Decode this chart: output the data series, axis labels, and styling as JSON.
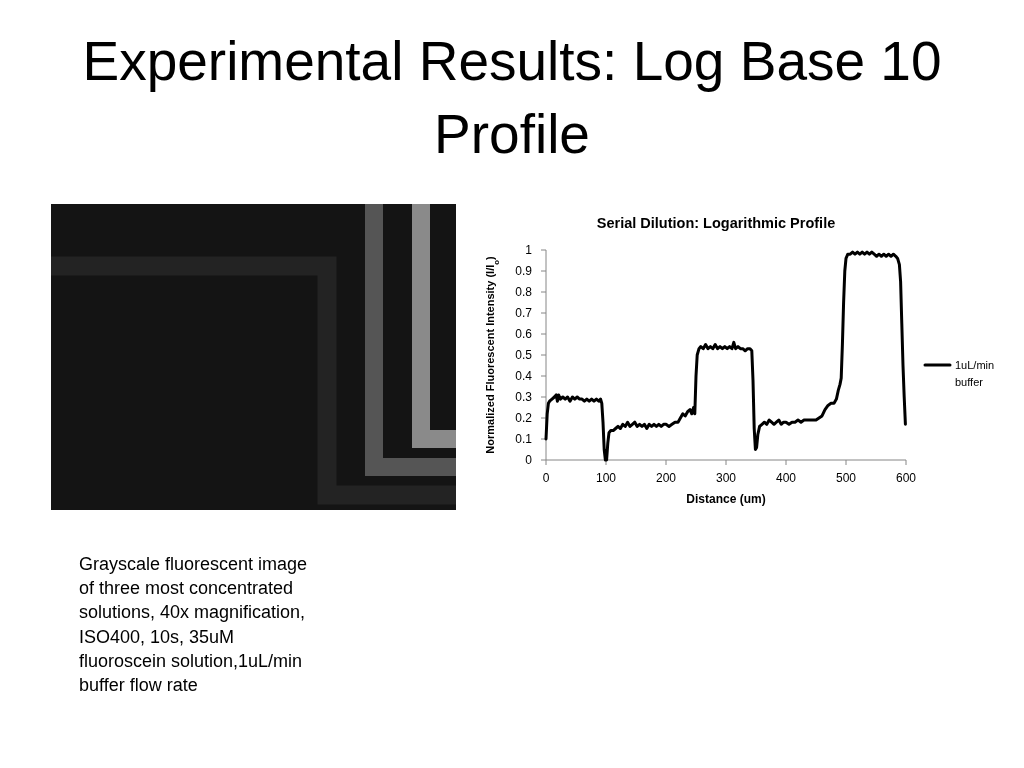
{
  "chart_data": {
    "type": "line",
    "title": "Experimental Results: Log Base 10 Profile",
    "subtitle": "Serial Dilution: Logarithmic Profile",
    "xlabel": "Distance (um)",
    "ylabel": "Normalized Fluorescent Intensity (I/I$_{o}$)",
    "xlim": [
      0,
      600
    ],
    "xticks": [
      0,
      100,
      200,
      300,
      400,
      500,
      600
    ],
    "ylim": [
      0,
      1
    ],
    "yticks": [
      0,
      0.1,
      0.2,
      0.3,
      0.4,
      0.5,
      0.6,
      0.7,
      0.8,
      0.9,
      1
    ],
    "legend": "right",
    "annotations": [
      "Grayscale fluorescent image\nof three most concentrated\nsolutions, 40x magnification,\nISO400, 10s, 35uM\nfluoroscein solution,1uL/min\nbuffer flow rate"
    ],
    "series": [
      {
        "name": "1uL/min buffer",
        "color": "#000000",
        "x": [
          0,
          2,
          4,
          6,
          10,
          14,
          17,
          19,
          21,
          24,
          28,
          32,
          36,
          40,
          44,
          48,
          52,
          56,
          60,
          64,
          68,
          72,
          76,
          80,
          84,
          88,
          91,
          93,
          95,
          97,
          99,
          101,
          103,
          105,
          108,
          112,
          116,
          120,
          124,
          128,
          132,
          136,
          140,
          144,
          148,
          152,
          156,
          160,
          164,
          168,
          172,
          176,
          180,
          184,
          188,
          192,
          196,
          200,
          205,
          210,
          215,
          220,
          224,
          228,
          232,
          236,
          240,
          243,
          246,
          248,
          250,
          252,
          255,
          258,
          262,
          266,
          270,
          274,
          278,
          282,
          286,
          290,
          294,
          298,
          302,
          306,
          310,
          313,
          316,
          320,
          324,
          328,
          332,
          336,
          340,
          343,
          345,
          347,
          349,
          351,
          353,
          356,
          360,
          364,
          368,
          372,
          376,
          380,
          384,
          388,
          392,
          396,
          400,
          405,
          410,
          415,
          420,
          425,
          430,
          435,
          440,
          445,
          450,
          455,
          460,
          465,
          470,
          475,
          480,
          484,
          487,
          490,
          492,
          494,
          496,
          498,
          500,
          503,
          507,
          511,
          515,
          519,
          523,
          527,
          531,
          535,
          539,
          543,
          547,
          551,
          555,
          559,
          563,
          567,
          571,
          575,
          579,
          583,
          586,
          589,
          591,
          593,
          595,
          597,
          599
        ],
        "values": [
          0.1,
          0.22,
          0.27,
          0.28,
          0.29,
          0.3,
          0.31,
          0.28,
          0.31,
          0.29,
          0.3,
          0.29,
          0.3,
          0.28,
          0.3,
          0.29,
          0.3,
          0.29,
          0.29,
          0.28,
          0.29,
          0.28,
          0.29,
          0.28,
          0.29,
          0.28,
          0.29,
          0.27,
          0.18,
          0.05,
          0.0,
          0.0,
          0.08,
          0.13,
          0.14,
          0.14,
          0.15,
          0.16,
          0.15,
          0.17,
          0.16,
          0.18,
          0.16,
          0.17,
          0.18,
          0.16,
          0.17,
          0.16,
          0.17,
          0.15,
          0.17,
          0.16,
          0.17,
          0.16,
          0.17,
          0.16,
          0.17,
          0.17,
          0.16,
          0.17,
          0.18,
          0.18,
          0.2,
          0.22,
          0.21,
          0.23,
          0.24,
          0.22,
          0.25,
          0.22,
          0.4,
          0.5,
          0.53,
          0.54,
          0.53,
          0.55,
          0.53,
          0.54,
          0.53,
          0.55,
          0.53,
          0.54,
          0.53,
          0.54,
          0.53,
          0.54,
          0.53,
          0.56,
          0.53,
          0.54,
          0.53,
          0.53,
          0.52,
          0.53,
          0.53,
          0.52,
          0.38,
          0.15,
          0.05,
          0.06,
          0.12,
          0.16,
          0.17,
          0.18,
          0.17,
          0.19,
          0.18,
          0.17,
          0.18,
          0.19,
          0.17,
          0.18,
          0.18,
          0.17,
          0.18,
          0.18,
          0.19,
          0.18,
          0.19,
          0.19,
          0.19,
          0.19,
          0.19,
          0.2,
          0.21,
          0.24,
          0.26,
          0.27,
          0.27,
          0.29,
          0.33,
          0.36,
          0.39,
          0.55,
          0.75,
          0.9,
          0.96,
          0.98,
          0.98,
          0.99,
          0.98,
          0.99,
          0.98,
          0.99,
          0.98,
          0.99,
          0.98,
          0.99,
          0.98,
          0.97,
          0.98,
          0.97,
          0.98,
          0.97,
          0.98,
          0.97,
          0.98,
          0.97,
          0.96,
          0.93,
          0.85,
          0.65,
          0.45,
          0.3,
          0.17
        ]
      }
    ]
  }
}
